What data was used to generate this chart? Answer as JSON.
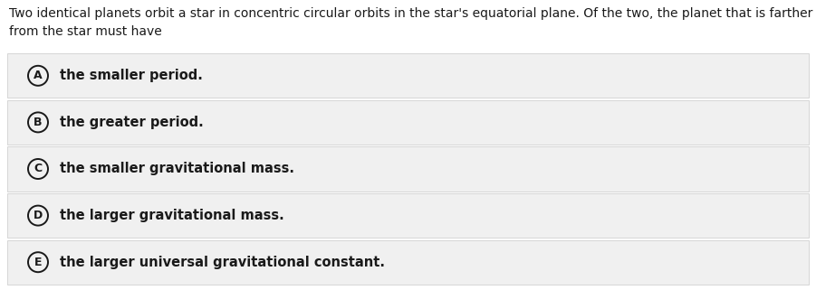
{
  "question": "Two identical planets orbit a star in concentric circular orbits in the star's equatorial plane. Of the two, the planet that is farther\nfrom the star must have",
  "options": [
    {
      "label": "A",
      "text": "the smaller period."
    },
    {
      "label": "B",
      "text": "the greater period."
    },
    {
      "label": "C",
      "text": "the smaller gravitational mass."
    },
    {
      "label": "D",
      "text": "the larger gravitational mass."
    },
    {
      "label": "E",
      "text": "the larger universal gravitational constant."
    }
  ],
  "bg_color": "#ffffff",
  "option_bg_color": "#f0f0f0",
  "option_border_color": "#d0d0d0",
  "text_color": "#1a1a1a",
  "question_fontsize": 10.0,
  "option_fontsize": 10.5,
  "circle_color": "#1a1a1a",
  "fig_width": 9.01,
  "fig_height": 3.21,
  "dpi": 100
}
